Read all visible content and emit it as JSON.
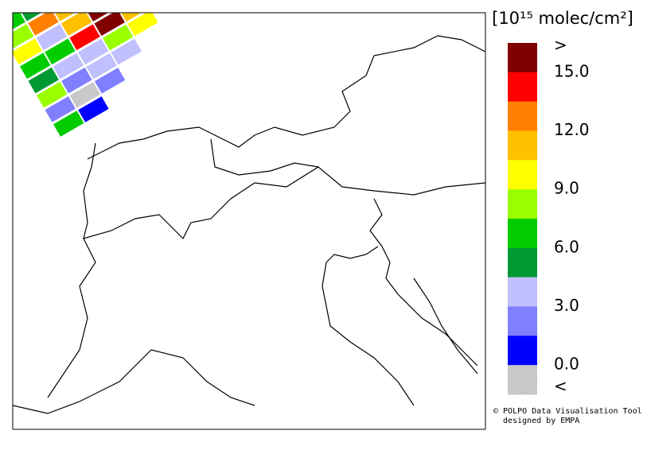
{
  "map": {
    "colorbar": {
      "title": "[10¹⁵ molec/cm²]",
      "colors": [
        "#800000",
        "#ff0000",
        "#ff8000",
        "#ffc000",
        "#ffff00",
        "#99ff00",
        "#00cc00",
        "#009933",
        "#c0c0ff",
        "#8080ff",
        "#0000ff",
        "#c8c8c8"
      ],
      "lim": [
        0,
        15
      ],
      "ticks": [
        {
          "value": 15,
          "label": "15.0"
        },
        {
          "value": 12,
          "label": "12.0"
        },
        {
          "value": 9,
          "label": "9.0"
        },
        {
          "value": 6,
          "label": "6.0"
        },
        {
          "value": 3,
          "label": "3.0"
        },
        {
          "value": 0,
          "label": "0.0"
        }
      ],
      "over_label": ">",
      "under_label": "<"
    },
    "credit": [
      "© POLPO Data Visualisation Tool",
      "designed by EMPA"
    ]
  }
}
